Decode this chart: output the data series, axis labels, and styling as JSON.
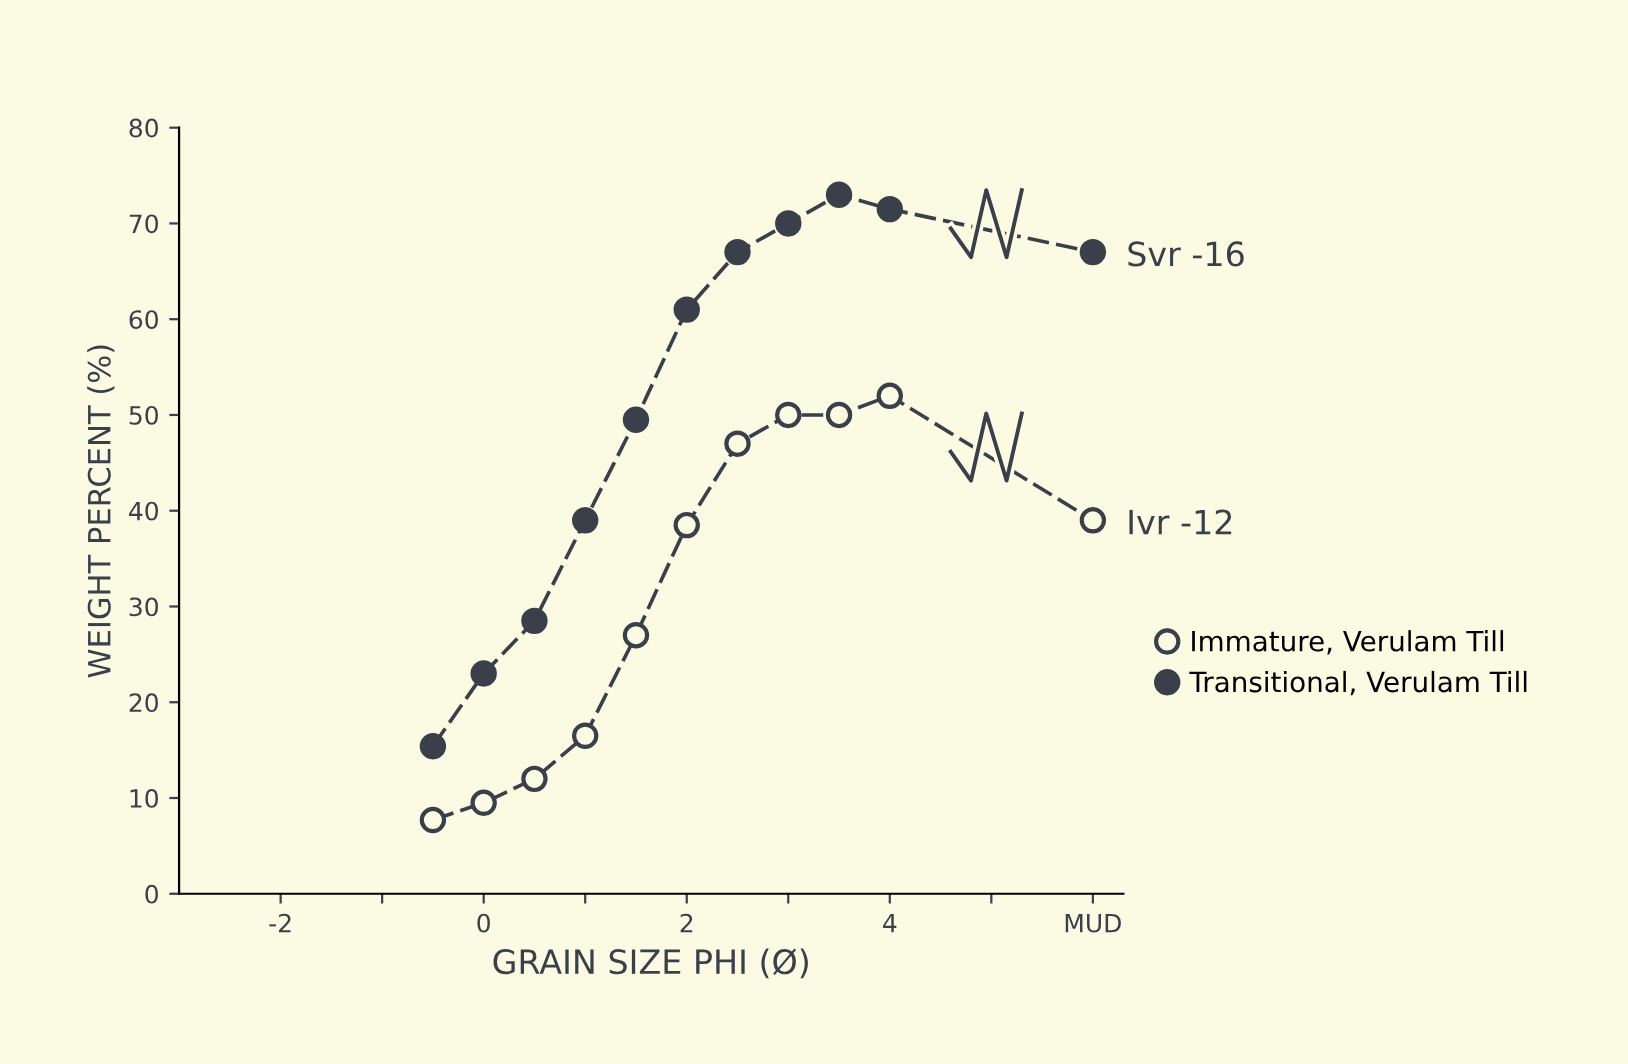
{
  "chart_data": {
    "type": "line",
    "xlabel": "GRAIN SIZE PHI (Ø)",
    "ylabel": "WEIGHT PERCENT (%)",
    "x": [
      -0.5,
      0,
      0.5,
      1,
      1.5,
      2,
      2.5,
      3,
      3.5,
      4,
      6
    ],
    "series": [
      {
        "name": "Immature, Verulam Till",
        "color": "#3a3f4a",
        "values": [
          7.7,
          9.5,
          12,
          16.5,
          27,
          38.5,
          47,
          50,
          50,
          52,
          39
        ]
      },
      {
        "name": "Transitional, Verulam Till",
        "color": "#3a3f4a",
        "values": [
          15.4,
          23,
          28.5,
          39,
          49.5,
          61,
          67,
          70,
          73,
          71.5,
          67
        ]
      }
    ],
    "annotations": [
      {
        "text": "Ivr -12",
        "x": 6,
        "y": 39
      },
      {
        "text": "Svr -16",
        "x": 6,
        "y": 67
      }
    ],
    "xlim": [
      -3,
      6.3
    ],
    "ylim": [
      0,
      80
    ],
    "xticks": [
      -2,
      {
        "value": -1,
        "label": null
      },
      0,
      {
        "value": 1,
        "label": null
      },
      2,
      {
        "value": 3,
        "label": null
      },
      4,
      {
        "value": 5,
        "label": null
      },
      {
        "value": 6,
        "label": "MUD"
      }
    ],
    "yticks": [
      0,
      10,
      20,
      30,
      40,
      50,
      60,
      70,
      80
    ],
    "marker": "circle",
    "line_style": "dashed",
    "grid": false,
    "legend": "right"
  }
}
